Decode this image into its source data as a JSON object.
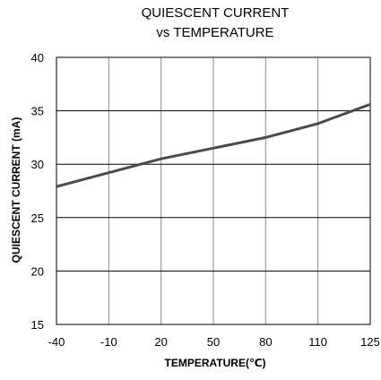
{
  "chart_data": {
    "type": "line",
    "title_lines": [
      "QUIESCENT CURRENT",
      "vs TEMPERATURE"
    ],
    "xlabel": "TEMPERATURE(℃)",
    "ylabel": "QUIESCENT CURRENT (mA)",
    "x_ticks": [
      "-40",
      "-10",
      "20",
      "50",
      "80",
      "110",
      "125"
    ],
    "y_ticks": [
      "40",
      "35",
      "30",
      "25",
      "20",
      "15"
    ],
    "ylim": [
      15,
      40
    ],
    "grid": true,
    "series": [
      {
        "color": "#4a4a4a",
        "points": [
          {
            "x": -40,
            "y": 27.9
          },
          {
            "x": -10,
            "y": 29.2
          },
          {
            "x": 20,
            "y": 30.5
          },
          {
            "x": 50,
            "y": 31.5
          },
          {
            "x": 80,
            "y": 32.5
          },
          {
            "x": 110,
            "y": 33.8
          },
          {
            "x": 125,
            "y": 35.6
          }
        ]
      }
    ],
    "grid_color": "#888888",
    "frame_color": "#000000"
  }
}
